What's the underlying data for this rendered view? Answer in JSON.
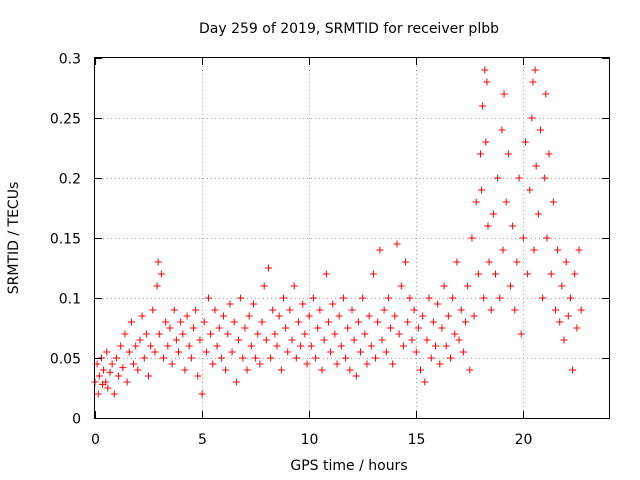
{
  "chart_data": {
    "type": "scatter",
    "title": "Day 259 of 2019, SRMTID for receiver plbb",
    "xlabel": "GPS time / hours",
    "ylabel": "SRMTID / TECUs",
    "xlim": [
      0,
      24
    ],
    "ylim": [
      0,
      0.3
    ],
    "xticks": [
      0,
      5,
      10,
      15,
      20
    ],
    "xtick_labels": [
      "0",
      "5",
      "10",
      "15",
      "20"
    ],
    "yticks": [
      0,
      0.05,
      0.1,
      0.15,
      0.2,
      0.25,
      0.3
    ],
    "ytick_labels": [
      "0",
      "0.05",
      "0.1",
      "0.15",
      "0.2",
      "0.25",
      "0.3"
    ],
    "grid": true,
    "marker": "+",
    "color": "#ff0000",
    "series": [
      {
        "name": "SRMTID",
        "points": [
          [
            0.0,
            0.03
          ],
          [
            0.1,
            0.045
          ],
          [
            0.15,
            0.02
          ],
          [
            0.2,
            0.035
          ],
          [
            0.3,
            0.05
          ],
          [
            0.35,
            0.028
          ],
          [
            0.4,
            0.04
          ],
          [
            0.5,
            0.03
          ],
          [
            0.55,
            0.055
          ],
          [
            0.6,
            0.025
          ],
          [
            0.7,
            0.038
          ],
          [
            0.8,
            0.045
          ],
          [
            0.9,
            0.02
          ],
          [
            1.0,
            0.05
          ],
          [
            1.1,
            0.035
          ],
          [
            1.2,
            0.06
          ],
          [
            1.3,
            0.042
          ],
          [
            1.4,
            0.07
          ],
          [
            1.5,
            0.03
          ],
          [
            1.6,
            0.055
          ],
          [
            1.7,
            0.08
          ],
          [
            1.8,
            0.045
          ],
          [
            1.9,
            0.06
          ],
          [
            2.0,
            0.04
          ],
          [
            2.1,
            0.065
          ],
          [
            2.2,
            0.085
          ],
          [
            2.3,
            0.05
          ],
          [
            2.4,
            0.07
          ],
          [
            2.5,
            0.035
          ],
          [
            2.6,
            0.06
          ],
          [
            2.7,
            0.09
          ],
          [
            2.8,
            0.055
          ],
          [
            2.9,
            0.11
          ],
          [
            2.95,
            0.13
          ],
          [
            3.0,
            0.07
          ],
          [
            3.1,
            0.12
          ],
          [
            3.2,
            0.05
          ],
          [
            3.3,
            0.08
          ],
          [
            3.4,
            0.06
          ],
          [
            3.5,
            0.075
          ],
          [
            3.6,
            0.045
          ],
          [
            3.7,
            0.09
          ],
          [
            3.8,
            0.065
          ],
          [
            3.9,
            0.055
          ],
          [
            4.0,
            0.08
          ],
          [
            4.1,
            0.07
          ],
          [
            4.2,
            0.04
          ],
          [
            4.3,
            0.085
          ],
          [
            4.4,
            0.06
          ],
          [
            4.5,
            0.05
          ],
          [
            4.6,
            0.075
          ],
          [
            4.7,
            0.09
          ],
          [
            4.8,
            0.035
          ],
          [
            4.9,
            0.065
          ],
          [
            5.0,
            0.02
          ],
          [
            5.1,
            0.08
          ],
          [
            5.2,
            0.055
          ],
          [
            5.3,
            0.1
          ],
          [
            5.4,
            0.07
          ],
          [
            5.5,
            0.045
          ],
          [
            5.6,
            0.09
          ],
          [
            5.7,
            0.06
          ],
          [
            5.8,
            0.075
          ],
          [
            5.9,
            0.05
          ],
          [
            6.0,
            0.085
          ],
          [
            6.1,
            0.04
          ],
          [
            6.2,
            0.07
          ],
          [
            6.3,
            0.095
          ],
          [
            6.4,
            0.055
          ],
          [
            6.5,
            0.08
          ],
          [
            6.6,
            0.03
          ],
          [
            6.7,
            0.065
          ],
          [
            6.8,
            0.1
          ],
          [
            6.9,
            0.05
          ],
          [
            7.0,
            0.075
          ],
          [
            7.1,
            0.04
          ],
          [
            7.2,
            0.085
          ],
          [
            7.3,
            0.06
          ],
          [
            7.4,
            0.095
          ],
          [
            7.5,
            0.05
          ],
          [
            7.6,
            0.07
          ],
          [
            7.7,
            0.045
          ],
          [
            7.8,
            0.08
          ],
          [
            7.9,
            0.11
          ],
          [
            8.0,
            0.065
          ],
          [
            8.1,
            0.125
          ],
          [
            8.2,
            0.05
          ],
          [
            8.3,
            0.09
          ],
          [
            8.4,
            0.07
          ],
          [
            8.5,
            0.06
          ],
          [
            8.6,
            0.085
          ],
          [
            8.7,
            0.04
          ],
          [
            8.8,
            0.1
          ],
          [
            8.9,
            0.075
          ],
          [
            9.0,
            0.055
          ],
          [
            9.1,
            0.09
          ],
          [
            9.2,
            0.065
          ],
          [
            9.3,
            0.11
          ],
          [
            9.4,
            0.05
          ],
          [
            9.5,
            0.08
          ],
          [
            9.6,
            0.06
          ],
          [
            9.7,
            0.095
          ],
          [
            9.8,
            0.07
          ],
          [
            9.9,
            0.045
          ],
          [
            10.0,
            0.085
          ],
          [
            10.1,
            0.06
          ],
          [
            10.2,
            0.1
          ],
          [
            10.3,
            0.05
          ],
          [
            10.4,
            0.075
          ],
          [
            10.5,
            0.09
          ],
          [
            10.6,
            0.04
          ],
          [
            10.7,
            0.065
          ],
          [
            10.8,
            0.12
          ],
          [
            10.9,
            0.08
          ],
          [
            11.0,
            0.055
          ],
          [
            11.1,
            0.095
          ],
          [
            11.2,
            0.07
          ],
          [
            11.3,
            0.045
          ],
          [
            11.4,
            0.085
          ],
          [
            11.5,
            0.06
          ],
          [
            11.6,
            0.1
          ],
          [
            11.7,
            0.05
          ],
          [
            11.8,
            0.075
          ],
          [
            11.9,
            0.04
          ],
          [
            12.0,
            0.09
          ],
          [
            12.1,
            0.065
          ],
          [
            12.2,
            0.035
          ],
          [
            12.3,
            0.08
          ],
          [
            12.4,
            0.055
          ],
          [
            12.5,
            0.1
          ],
          [
            12.6,
            0.07
          ],
          [
            12.7,
            0.045
          ],
          [
            12.8,
            0.085
          ],
          [
            12.9,
            0.06
          ],
          [
            13.0,
            0.12
          ],
          [
            13.1,
            0.05
          ],
          [
            13.2,
            0.08
          ],
          [
            13.3,
            0.14
          ],
          [
            13.4,
            0.065
          ],
          [
            13.5,
            0.09
          ],
          [
            13.6,
            0.055
          ],
          [
            13.7,
            0.1
          ],
          [
            13.8,
            0.075
          ],
          [
            13.9,
            0.045
          ],
          [
            14.0,
            0.085
          ],
          [
            14.1,
            0.145
          ],
          [
            14.2,
            0.07
          ],
          [
            14.3,
            0.11
          ],
          [
            14.4,
            0.06
          ],
          [
            14.5,
            0.13
          ],
          [
            14.6,
            0.08
          ],
          [
            14.7,
            0.1
          ],
          [
            14.8,
            0.065
          ],
          [
            14.9,
            0.09
          ],
          [
            15.0,
            0.055
          ],
          [
            15.1,
            0.075
          ],
          [
            15.2,
            0.04
          ],
          [
            15.3,
            0.085
          ],
          [
            15.4,
            0.03
          ],
          [
            15.5,
            0.065
          ],
          [
            15.6,
            0.1
          ],
          [
            15.7,
            0.05
          ],
          [
            15.8,
            0.08
          ],
          [
            15.9,
            0.06
          ],
          [
            16.0,
            0.095
          ],
          [
            16.1,
            0.045
          ],
          [
            16.2,
            0.075
          ],
          [
            16.3,
            0.11
          ],
          [
            16.4,
            0.06
          ],
          [
            16.5,
            0.085
          ],
          [
            16.6,
            0.05
          ],
          [
            16.7,
            0.1
          ],
          [
            16.8,
            0.07
          ],
          [
            16.9,
            0.13
          ],
          [
            17.0,
            0.065
          ],
          [
            17.1,
            0.09
          ],
          [
            17.2,
            0.055
          ],
          [
            17.3,
            0.08
          ],
          [
            17.4,
            0.11
          ],
          [
            17.5,
            0.04
          ],
          [
            17.6,
            0.15
          ],
          [
            17.7,
            0.085
          ],
          [
            17.8,
            0.18
          ],
          [
            17.9,
            0.12
          ],
          [
            18.0,
            0.22
          ],
          [
            18.05,
            0.19
          ],
          [
            18.1,
            0.26
          ],
          [
            18.15,
            0.1
          ],
          [
            18.2,
            0.29
          ],
          [
            18.25,
            0.23
          ],
          [
            18.3,
            0.28
          ],
          [
            18.35,
            0.16
          ],
          [
            18.4,
            0.13
          ],
          [
            18.5,
            0.09
          ],
          [
            18.6,
            0.17
          ],
          [
            18.7,
            0.12
          ],
          [
            18.8,
            0.2
          ],
          [
            18.9,
            0.1
          ],
          [
            19.0,
            0.24
          ],
          [
            19.05,
            0.14
          ],
          [
            19.1,
            0.27
          ],
          [
            19.2,
            0.18
          ],
          [
            19.3,
            0.22
          ],
          [
            19.4,
            0.11
          ],
          [
            19.5,
            0.16
          ],
          [
            19.6,
            0.09
          ],
          [
            19.7,
            0.13
          ],
          [
            19.8,
            0.2
          ],
          [
            19.9,
            0.07
          ],
          [
            20.0,
            0.15
          ],
          [
            20.1,
            0.23
          ],
          [
            20.2,
            0.12
          ],
          [
            20.3,
            0.19
          ],
          [
            20.4,
            0.25
          ],
          [
            20.45,
            0.28
          ],
          [
            20.5,
            0.14
          ],
          [
            20.55,
            0.29
          ],
          [
            20.6,
            0.21
          ],
          [
            20.7,
            0.17
          ],
          [
            20.8,
            0.24
          ],
          [
            20.9,
            0.1
          ],
          [
            21.0,
            0.2
          ],
          [
            21.05,
            0.27
          ],
          [
            21.1,
            0.15
          ],
          [
            21.2,
            0.22
          ],
          [
            21.3,
            0.12
          ],
          [
            21.4,
            0.18
          ],
          [
            21.5,
            0.09
          ],
          [
            21.6,
            0.14
          ],
          [
            21.7,
            0.08
          ],
          [
            21.8,
            0.11
          ],
          [
            21.9,
            0.065
          ],
          [
            22.0,
            0.13
          ],
          [
            22.1,
            0.085
          ],
          [
            22.2,
            0.1
          ],
          [
            22.3,
            0.04
          ],
          [
            22.4,
            0.12
          ],
          [
            22.5,
            0.075
          ],
          [
            22.6,
            0.14
          ],
          [
            22.7,
            0.09
          ]
        ]
      }
    ]
  }
}
